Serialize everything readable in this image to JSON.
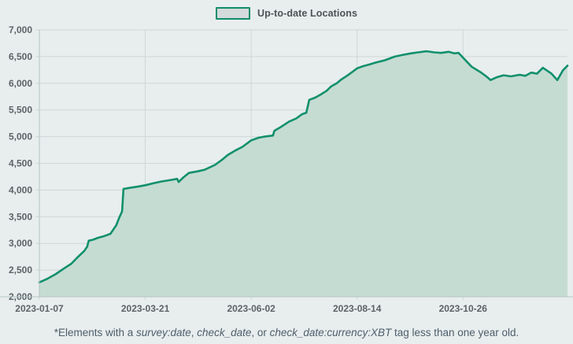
{
  "legend": {
    "label": "Up-to-date Locations"
  },
  "footnote": {
    "segments": [
      {
        "text": "*Elements with a ",
        "italic": false
      },
      {
        "text": "survey:date",
        "italic": true
      },
      {
        "text": ", ",
        "italic": false
      },
      {
        "text": "check_date",
        "italic": true
      },
      {
        "text": ", or ",
        "italic": false
      },
      {
        "text": "check_date:currency:XBT",
        "italic": true
      },
      {
        "text": " tag less than one year old.",
        "italic": false
      }
    ]
  },
  "colors": {
    "background": "#e8edee",
    "line": "#11906b",
    "fill": "#c5dcd2",
    "grid": "#cdd9d6",
    "axis": "#b5c5c3",
    "tick_text": "#5b6467",
    "legend_border": "#0e8e6b",
    "legend_fill": "#d5dadb"
  },
  "chart_data": {
    "type": "area",
    "title": "",
    "legend_entries": [
      "Up-to-date Locations"
    ],
    "grid": true,
    "legend_position": "top-center",
    "ylim": [
      2000,
      7000
    ],
    "y_tick_step": 500,
    "y_tick_labels": [
      "2,000",
      "2,500",
      "3,000",
      "3,500",
      "4,000",
      "4,500",
      "5,000",
      "5,500",
      "6,000",
      "6,500",
      "7,000"
    ],
    "x_tick_labels": [
      "2023-01-07",
      "2023-03-21",
      "2023-06-02",
      "2023-08-14",
      "2023-10-26"
    ],
    "x_start": "2023-01-07",
    "x_end": "2024-01-06",
    "series": [
      {
        "name": "Up-to-date Locations",
        "points": [
          [
            "2023-01-07",
            2270
          ],
          [
            "2023-01-12",
            2330
          ],
          [
            "2023-01-18",
            2420
          ],
          [
            "2023-01-24",
            2530
          ],
          [
            "2023-01-29",
            2620
          ],
          [
            "2023-02-02",
            2730
          ],
          [
            "2023-02-07",
            2860
          ],
          [
            "2023-02-09",
            2940
          ],
          [
            "2023-02-10",
            3050
          ],
          [
            "2023-02-13",
            3070
          ],
          [
            "2023-02-16",
            3100
          ],
          [
            "2023-02-21",
            3140
          ],
          [
            "2023-02-25",
            3180
          ],
          [
            "2023-03-01",
            3340
          ],
          [
            "2023-03-03",
            3480
          ],
          [
            "2023-03-05",
            3600
          ],
          [
            "2023-03-06",
            4020
          ],
          [
            "2023-03-10",
            4040
          ],
          [
            "2023-03-15",
            4060
          ],
          [
            "2023-03-21",
            4090
          ],
          [
            "2023-03-27",
            4130
          ],
          [
            "2023-04-01",
            4160
          ],
          [
            "2023-04-08",
            4190
          ],
          [
            "2023-04-12",
            4210
          ],
          [
            "2023-04-13",
            4150
          ],
          [
            "2023-04-16",
            4230
          ],
          [
            "2023-04-20",
            4320
          ],
          [
            "2023-04-26",
            4350
          ],
          [
            "2023-05-01",
            4380
          ],
          [
            "2023-05-08",
            4470
          ],
          [
            "2023-05-13",
            4570
          ],
          [
            "2023-05-17",
            4660
          ],
          [
            "2023-05-22",
            4740
          ],
          [
            "2023-05-27",
            4810
          ],
          [
            "2023-06-02",
            4930
          ],
          [
            "2023-06-07",
            4980
          ],
          [
            "2023-06-11",
            5000
          ],
          [
            "2023-06-17",
            5020
          ],
          [
            "2023-06-18",
            5110
          ],
          [
            "2023-06-23",
            5190
          ],
          [
            "2023-06-28",
            5280
          ],
          [
            "2023-07-03",
            5340
          ],
          [
            "2023-07-07",
            5420
          ],
          [
            "2023-07-10",
            5450
          ],
          [
            "2023-07-12",
            5690
          ],
          [
            "2023-07-16",
            5730
          ],
          [
            "2023-07-20",
            5790
          ],
          [
            "2023-07-24",
            5860
          ],
          [
            "2023-07-27",
            5940
          ],
          [
            "2023-07-31",
            6000
          ],
          [
            "2023-08-03",
            6070
          ],
          [
            "2023-08-07",
            6140
          ],
          [
            "2023-08-11",
            6220
          ],
          [
            "2023-08-14",
            6280
          ],
          [
            "2023-08-18",
            6320
          ],
          [
            "2023-08-22",
            6350
          ],
          [
            "2023-08-27",
            6390
          ],
          [
            "2023-09-02",
            6430
          ],
          [
            "2023-09-09",
            6500
          ],
          [
            "2023-09-14",
            6530
          ],
          [
            "2023-09-20",
            6560
          ],
          [
            "2023-09-25",
            6580
          ],
          [
            "2023-10-01",
            6600
          ],
          [
            "2023-10-06",
            6580
          ],
          [
            "2023-10-11",
            6570
          ],
          [
            "2023-10-16",
            6590
          ],
          [
            "2023-10-20",
            6560
          ],
          [
            "2023-10-23",
            6570
          ],
          [
            "2023-10-26",
            6480
          ],
          [
            "2023-11-01",
            6310
          ],
          [
            "2023-11-07",
            6210
          ],
          [
            "2023-11-11",
            6130
          ],
          [
            "2023-11-14",
            6060
          ],
          [
            "2023-11-18",
            6110
          ],
          [
            "2023-11-23",
            6150
          ],
          [
            "2023-11-28",
            6130
          ],
          [
            "2023-12-04",
            6160
          ],
          [
            "2023-12-08",
            6140
          ],
          [
            "2023-12-12",
            6200
          ],
          [
            "2023-12-16",
            6180
          ],
          [
            "2023-12-20",
            6290
          ],
          [
            "2023-12-26",
            6180
          ],
          [
            "2023-12-30",
            6060
          ],
          [
            "2024-01-03",
            6250
          ],
          [
            "2024-01-06",
            6330
          ]
        ]
      }
    ]
  }
}
